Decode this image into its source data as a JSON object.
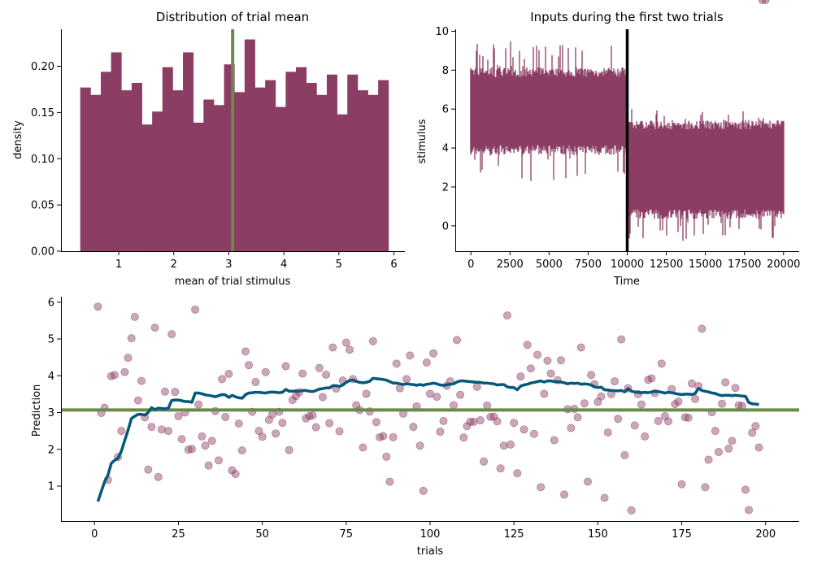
{
  "colors": {
    "bar": "#8b3d63",
    "stim": "#8b3d63",
    "divider": "#000000",
    "hline": "#6a8a4b",
    "scatter": "#8b3d63",
    "running": "#05587a"
  },
  "chart_data": [
    {
      "id": "hist",
      "type": "bar",
      "title": "Distribution of trial mean",
      "xlabel": "mean of trial stimulus",
      "ylabel": "density",
      "xlim": [
        -0.05,
        6.2
      ],
      "ylim": [
        0,
        0.24
      ],
      "xticks": [
        1,
        2,
        3,
        4,
        5,
        6
      ],
      "yticks": [
        0.0,
        0.05,
        0.1,
        0.15,
        0.2
      ],
      "ytick_labels": [
        "0.00",
        "0.05",
        "0.10",
        "0.15",
        "0.20"
      ],
      "bin_start": 0.3,
      "bin_width": 0.1867,
      "values": [
        0.177,
        0.169,
        0.194,
        0.215,
        0.174,
        0.182,
        0.137,
        0.151,
        0.199,
        0.174,
        0.215,
        0.139,
        0.164,
        0.158,
        0.202,
        0.172,
        0.229,
        0.177,
        0.185,
        0.156,
        0.194,
        0.199,
        0.182,
        0.169,
        0.191,
        0.148,
        0.191,
        0.174,
        0.169,
        0.185
      ],
      "vline": 3.07,
      "grid": false
    },
    {
      "id": "stim",
      "type": "line",
      "title": "Inputs during the first two trials",
      "xlabel": "Time",
      "ylabel": "stimulus",
      "xlim": [
        -1000,
        21000
      ],
      "ylim": [
        -1.3,
        10.1
      ],
      "xticks": [
        0,
        2500,
        5000,
        7500,
        10000,
        12500,
        15000,
        17500,
        20000
      ],
      "yticks": [
        0,
        2,
        4,
        6,
        8,
        10
      ],
      "segments": [
        {
          "x_start": 0,
          "x_end": 10000,
          "mean": 5.4,
          "low": 2.3,
          "high": 9.5,
          "band_low": 3.9,
          "band_high": 7.9
        },
        {
          "x_start": 10000,
          "x_end": 20000,
          "mean": 3.0,
          "low": -0.8,
          "high": 6.0,
          "band_low": 0.6,
          "band_high": 5.2
        }
      ],
      "vline": 10000,
      "grid": false
    },
    {
      "id": "pred",
      "type": "scatter",
      "title": "",
      "xlabel": "trials",
      "ylabel": "Prediction",
      "xlim": [
        -10,
        210
      ],
      "ylim": [
        0.05,
        6.15
      ],
      "xticks": [
        0,
        25,
        50,
        75,
        100,
        125,
        150,
        175,
        200
      ],
      "yticks": [
        1,
        2,
        3,
        4,
        5,
        6
      ],
      "points_x": [
        1,
        2,
        3,
        4,
        5,
        6,
        7,
        8,
        9,
        10,
        11,
        12,
        13,
        14,
        15,
        16,
        17,
        18,
        19,
        20,
        21,
        22,
        23,
        24,
        25,
        26,
        27,
        28,
        29,
        30,
        31,
        32,
        33,
        34,
        35,
        36,
        37,
        38,
        39,
        40,
        41,
        42,
        43,
        44,
        45,
        46,
        47,
        48,
        49,
        50,
        51,
        52,
        53,
        54,
        55,
        56,
        57,
        58,
        59,
        60,
        61,
        62,
        63,
        64,
        65,
        66,
        67,
        68,
        69,
        70,
        71,
        72,
        73,
        74,
        75,
        76,
        77,
        78,
        79,
        80,
        81,
        82,
        83,
        84,
        85,
        86,
        87,
        88,
        89,
        90,
        91,
        92,
        93,
        94,
        95,
        96,
        97,
        98,
        99,
        100,
        101,
        102,
        103,
        104,
        105,
        106,
        107,
        108,
        109,
        110,
        111,
        112,
        113,
        114,
        115,
        116,
        117,
        118,
        119,
        120,
        121,
        122,
        123,
        124,
        125,
        126,
        127,
        128,
        129,
        130,
        131,
        132,
        133,
        134,
        135,
        136,
        137,
        138,
        139,
        140,
        141,
        142,
        143,
        144,
        145,
        146,
        147,
        148,
        149,
        150,
        151,
        152,
        153,
        154,
        155,
        156,
        157,
        158,
        159,
        160,
        161,
        162,
        163,
        164,
        165,
        166,
        167,
        168,
        169,
        170,
        171,
        172,
        173,
        174,
        175,
        176,
        177,
        178,
        179,
        180,
        181,
        182,
        183,
        184,
        185,
        186,
        187,
        188,
        189,
        190,
        191,
        192,
        193,
        194,
        195,
        196,
        197,
        198,
        199,
        200
      ],
      "points_y": [
        5.88,
        2.99,
        3.13,
        1.17,
        3.99,
        4.02,
        1.79,
        2.5,
        4.1,
        4.49,
        5.02,
        5.6,
        3.33,
        3.86,
        2.87,
        1.45,
        2.61,
        5.31,
        1.25,
        2.54,
        3.57,
        2.5,
        5.13,
        3.56,
        2.9,
        2.28,
        3.0,
        1.99,
        2.01,
        5.8,
        3.22,
        2.35,
        2.1,
        1.56,
        2.23,
        3.04,
        1.7,
        3.91,
        2.88,
        4.05,
        1.43,
        1.33,
        2.7,
        1.97,
        4.66,
        4.29,
        3.02,
        3.83,
        2.5,
        2.34,
        4.1,
        2.8,
        2.95,
        2.43,
        3.02,
        2.72,
        4.26,
        1.98,
        3.34,
        3.45,
        3.55,
        4.06,
        2.84,
        2.9,
        2.92,
        2.6,
        4.21,
        3.42,
        4.03,
        2.71,
        4.77,
        3.65,
        2.49,
        3.87,
        4.9,
        4.71,
        3.91,
        3.2,
        3.07,
        2.05,
        3.51,
        3.03,
        4.94,
        2.74,
        2.33,
        2.36,
        1.8,
        1.12,
        2.33,
        4.33,
        3.66,
        2.97,
        3.91,
        4.55,
        2.61,
        3.17,
        2.1,
        0.87,
        4.36,
        3.51,
        4.61,
        3.43,
        2.48,
        2.77,
        3.73,
        3.85,
        3.2,
        4.97,
        3.48,
        2.32,
        2.63,
        2.75,
        2.75,
        3.7,
        2.79,
        1.67,
        3.19,
        2.88,
        2.89,
        2.76,
        1.48,
        2.1,
        5.64,
        2.13,
        2.72,
        1.35,
        3.98,
        2.54,
        4.84,
        4.2,
        2.42,
        4.57,
        0.97,
        3.51,
        4.41,
        4.06,
        2.25,
        3.88,
        4.42,
        0.77,
        3.09,
        2.58,
        3.1,
        2.87,
        4.77,
        3.25,
        1.12,
        4.02,
        3.77,
        3.29,
        3.44,
        0.68,
        2.46,
        3.5,
        3.85,
        2.83,
        4.99,
        1.84,
        3.66,
        0.34,
        2.65,
        3.5,
        3.22,
        2.35,
        3.89,
        3.93,
        3.53,
        2.77,
        4.33,
        2.9,
        2.76,
        3.64,
        3.23,
        3.3,
        1.05,
        2.87,
        2.86,
        3.79,
        3.37,
        3.72,
        5.28,
        0.97,
        1.72,
        3.01,
        2.5,
        1.93,
        3.24,
        3.82,
        2.02,
        2.23,
        3.67,
        3.2,
        3.18,
        0.9,
        0.35,
        2.45,
        2.63,
        2.05
      ],
      "running_x": [
        1,
        2,
        3,
        4,
        5,
        6,
        7,
        8,
        9,
        10,
        11,
        12,
        13,
        14,
        15,
        16,
        17,
        18,
        19,
        20,
        21,
        22,
        23,
        24,
        25,
        26,
        27,
        28,
        29,
        30,
        31,
        32,
        33,
        34,
        35,
        36,
        37,
        38,
        39,
        40,
        41,
        42,
        43,
        44,
        45,
        46,
        47,
        48,
        49,
        50,
        51,
        52,
        53,
        54,
        55,
        56,
        57,
        58,
        59,
        60,
        61,
        62,
        63,
        64,
        65,
        66,
        67,
        68,
        69,
        70,
        71,
        72,
        73,
        74,
        75,
        76,
        77,
        78,
        79,
        80,
        81,
        82,
        83,
        84,
        85,
        86,
        87,
        88,
        89,
        90,
        91,
        92,
        93,
        94,
        95,
        96,
        97,
        98,
        99,
        100,
        101,
        102,
        103,
        104,
        105,
        106,
        107,
        108,
        109,
        110,
        111,
        112,
        113,
        114,
        115,
        116,
        117,
        118,
        119,
        120,
        121,
        122,
        123,
        124,
        125,
        126,
        127,
        128,
        129,
        130,
        131,
        132,
        133,
        134,
        135,
        136,
        137,
        138,
        139,
        140,
        141,
        142,
        143,
        144,
        145,
        146,
        147,
        148,
        149,
        150,
        151,
        152,
        153,
        154,
        155,
        156,
        157,
        158,
        159,
        160,
        161,
        162,
        163,
        164,
        165,
        166,
        167,
        168,
        169,
        170,
        171,
        172,
        173,
        174,
        175,
        176,
        177,
        178,
        179,
        180,
        181,
        182,
        183,
        184,
        185,
        186,
        187,
        188,
        189,
        190,
        191,
        192,
        193,
        194,
        195,
        196,
        197,
        198,
        199,
        200
      ],
      "running_y": [
        0.58,
        0.85,
        1.12,
        1.3,
        1.62,
        1.7,
        1.76,
        1.95,
        2.24,
        2.52,
        2.84,
        2.9,
        2.95,
        2.95,
        2.93,
        3.0,
        3.13,
        3.08,
        3.12,
        3.11,
        3.1,
        3.12,
        3.33,
        3.34,
        3.34,
        3.32,
        3.3,
        3.3,
        3.28,
        3.53,
        3.53,
        3.51,
        3.48,
        3.47,
        3.45,
        3.43,
        3.46,
        3.49,
        3.48,
        3.41,
        3.47,
        3.43,
        3.4,
        3.39,
        3.49,
        3.53,
        3.54,
        3.55,
        3.55,
        3.54,
        3.53,
        3.55,
        3.56,
        3.55,
        3.54,
        3.55,
        3.63,
        3.58,
        3.58,
        3.59,
        3.58,
        3.6,
        3.6,
        3.58,
        3.57,
        3.6,
        3.64,
        3.65,
        3.67,
        3.67,
        3.73,
        3.73,
        3.71,
        3.75,
        3.82,
        3.87,
        3.89,
        3.85,
        3.82,
        3.81,
        3.82,
        3.85,
        3.93,
        3.92,
        3.91,
        3.9,
        3.88,
        3.84,
        3.8,
        3.8,
        3.78,
        3.76,
        3.78,
        3.77,
        3.76,
        3.74,
        3.76,
        3.74,
        3.77,
        3.78,
        3.8,
        3.78,
        3.75,
        3.74,
        3.75,
        3.77,
        3.78,
        3.83,
        3.86,
        3.86,
        3.85,
        3.84,
        3.83,
        3.82,
        3.82,
        3.8,
        3.8,
        3.79,
        3.78,
        3.75,
        3.76,
        3.76,
        3.7,
        3.68,
        3.68,
        3.62,
        3.72,
        3.75,
        3.77,
        3.8,
        3.82,
        3.84,
        3.86,
        3.83,
        3.86,
        3.86,
        3.84,
        3.84,
        3.83,
        3.81,
        3.78,
        3.8,
        3.79,
        3.8,
        3.77,
        3.78,
        3.77,
        3.75,
        3.7,
        3.68,
        3.69,
        3.62,
        3.61,
        3.6,
        3.59,
        3.59,
        3.6,
        3.56,
        3.65,
        3.58,
        3.56,
        3.55,
        3.54,
        3.55,
        3.54,
        3.56,
        3.57,
        3.57,
        3.55,
        3.53,
        3.55,
        3.54,
        3.52,
        3.5,
        3.49,
        3.5,
        3.5,
        3.49,
        3.52,
        3.66,
        3.6,
        3.58,
        3.56,
        3.53,
        3.52,
        3.48,
        3.46,
        3.47,
        3.47,
        3.46,
        3.47,
        3.46,
        3.45,
        3.44,
        3.27,
        3.24,
        3.23,
        3.22
      ],
      "hline": 3.07,
      "grid": false
    }
  ]
}
